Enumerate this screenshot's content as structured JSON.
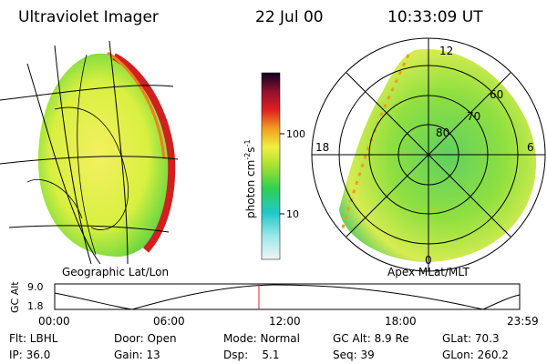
{
  "header": {
    "instrument": "Ultraviolet Imager",
    "date": "22 Jul 00",
    "time": "10:33:09 UT"
  },
  "left_panel": {
    "label": "Geographic Lat/Lon"
  },
  "colorbar": {
    "label": [
      "photon cm",
      "-2",
      "s",
      "-1"
    ],
    "ticks": [
      "100",
      "10"
    ]
  },
  "right_panel": {
    "label": "Apex MLat/MLT",
    "mlt_labels": [
      "12",
      "18",
      "6",
      "0"
    ],
    "lat_labels": [
      "60",
      "70",
      "80"
    ]
  },
  "altitude_plot": {
    "ylabel": "GC Alt",
    "yticks": [
      "9.0",
      "1.8"
    ],
    "xticks": [
      "00:00",
      "06:00",
      "12:00",
      "18:00",
      "23:59"
    ]
  },
  "status": [
    [
      "Flt: LBHL",
      "Door: Open",
      "Mode: Normal",
      "GC Alt: 8.9 Re",
      "GLat: 70.3"
    ],
    [
      "IP: 36.0",
      "Gain: 13",
      "Dsp:    5.1",
      "Seq: 39",
      "GLon: 260.2"
    ]
  ]
}
